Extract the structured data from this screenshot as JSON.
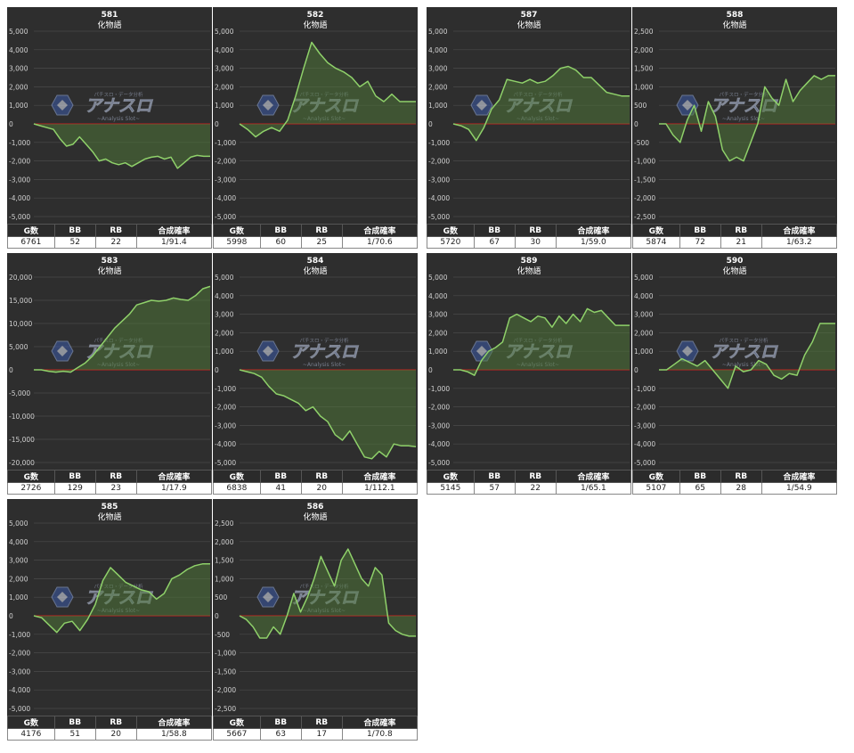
{
  "page": {
    "background": "#ffffff"
  },
  "colors": {
    "panel_bg": "#2e2e2e",
    "grid": "#4a4a4a",
    "zero_line": "#c8201e",
    "line": "#8fd16a",
    "fill": "#4f7a38",
    "axis_text": "#d0d0d0",
    "title_text": "#ffffff"
  },
  "watermark": {
    "main": "アナスロ",
    "sub": "~Analysis Slot~",
    "top": "パチスロ・データ分析"
  },
  "headers": [
    "G数",
    "BB",
    "RB",
    "合成確率"
  ],
  "charts": [
    {
      "title": "581",
      "subtitle": "化物語",
      "type": "area",
      "ylim": [
        -5000,
        5000
      ],
      "yticks": [
        5000,
        4000,
        3000,
        2000,
        1000,
        0,
        -1000,
        -2000,
        -3000,
        -4000,
        -5000
      ],
      "values": [
        0,
        -100,
        -200,
        -300,
        -800,
        -1200,
        -1100,
        -700,
        -1100,
        -1500,
        -2000,
        -1900,
        -2100,
        -2200,
        -2100,
        -2300,
        -2100,
        -1900,
        -1800,
        -1750,
        -1900,
        -1800,
        -2400,
        -2100,
        -1800,
        -1700,
        -1750,
        -1750
      ],
      "stats": {
        "g": "6761",
        "bb": "52",
        "rb": "22",
        "rate": "1/91.4"
      }
    },
    {
      "title": "582",
      "subtitle": "化物語",
      "type": "area",
      "ylim": [
        -5000,
        5000
      ],
      "yticks": [
        5000,
        4000,
        3000,
        2000,
        1000,
        0,
        -1000,
        -2000,
        -3000,
        -4000,
        -5000
      ],
      "values": [
        0,
        -300,
        -700,
        -400,
        -200,
        -400,
        200,
        1500,
        3000,
        4400,
        3800,
        3300,
        3000,
        2800,
        2500,
        2000,
        2300,
        1500,
        1200,
        1600,
        1200,
        1200,
        1200
      ],
      "stats": {
        "g": "5998",
        "bb": "60",
        "rb": "25",
        "rate": "1/70.6"
      }
    },
    {
      "title": "587",
      "subtitle": "化物語",
      "type": "area",
      "ylim": [
        -5000,
        5000
      ],
      "yticks": [
        5000,
        4000,
        3000,
        2000,
        1000,
        0,
        -1000,
        -2000,
        -3000,
        -4000,
        -5000
      ],
      "values": [
        0,
        -100,
        -300,
        -900,
        -200,
        800,
        1300,
        2400,
        2300,
        2200,
        2400,
        2200,
        2300,
        2600,
        3000,
        3100,
        2900,
        2500,
        2500,
        2100,
        1700,
        1600,
        1500,
        1500
      ],
      "stats": {
        "g": "5720",
        "bb": "67",
        "rb": "30",
        "rate": "1/59.0"
      }
    },
    {
      "title": "588",
      "subtitle": "化物語",
      "type": "area",
      "ylim": [
        -2500,
        2500
      ],
      "yticks": [
        2500,
        2000,
        1500,
        1000,
        500,
        0,
        -500,
        -1000,
        -1500,
        -2000,
        -2500
      ],
      "values": [
        0,
        0,
        -300,
        -500,
        100,
        500,
        -200,
        600,
        200,
        -700,
        -1000,
        -900,
        -1000,
        -500,
        0,
        1000,
        700,
        500,
        1200,
        600,
        900,
        1100,
        1300,
        1200,
        1300,
        1300
      ],
      "stats": {
        "g": "5874",
        "bb": "72",
        "rb": "21",
        "rate": "1/63.2"
      }
    },
    {
      "title": "583",
      "subtitle": "化物語",
      "type": "area",
      "ylim": [
        -20000,
        20000
      ],
      "yticks": [
        20000,
        15000,
        10000,
        5000,
        0,
        -5000,
        -10000,
        -15000,
        -20000
      ],
      "values": [
        0,
        0,
        -300,
        -500,
        -300,
        -500,
        500,
        1500,
        3000,
        5000,
        7000,
        9000,
        10500,
        12000,
        14000,
        14500,
        15000,
        14800,
        15000,
        15500,
        15200,
        15000,
        16000,
        17500,
        18000
      ],
      "stats": {
        "g": "2726",
        "bb": "129",
        "rb": "23",
        "rate": "1/17.9"
      }
    },
    {
      "title": "584",
      "subtitle": "化物語",
      "type": "area",
      "ylim": [
        -5000,
        5000
      ],
      "yticks": [
        5000,
        4000,
        3000,
        2000,
        1000,
        0,
        -1000,
        -2000,
        -3000,
        -4000,
        -5000
      ],
      "values": [
        0,
        -100,
        -200,
        -400,
        -900,
        -1300,
        -1400,
        -1600,
        -1800,
        -2200,
        -2000,
        -2500,
        -2800,
        -3500,
        -3800,
        -3300,
        -4000,
        -4700,
        -4800,
        -4400,
        -4700,
        -4000,
        -4100,
        -4100,
        -4150
      ],
      "stats": {
        "g": "6838",
        "bb": "41",
        "rb": "20",
        "rate": "1/112.1"
      }
    },
    {
      "title": "589",
      "subtitle": "化物語",
      "type": "area",
      "ylim": [
        -5000,
        5000
      ],
      "yticks": [
        5000,
        4000,
        3000,
        2000,
        1000,
        0,
        -1000,
        -2000,
        -3000,
        -4000,
        -5000
      ],
      "values": [
        0,
        0,
        -100,
        -300,
        500,
        1000,
        1200,
        1500,
        2800,
        3000,
        2800,
        2600,
        2900,
        2800,
        2300,
        2900,
        2500,
        3000,
        2600,
        3300,
        3100,
        3200,
        2800,
        2400,
        2400,
        2400
      ],
      "stats": {
        "g": "5145",
        "bb": "57",
        "rb": "22",
        "rate": "1/65.1"
      }
    },
    {
      "title": "590",
      "subtitle": "化物語",
      "type": "area",
      "ylim": [
        -5000,
        5000
      ],
      "yticks": [
        5000,
        4000,
        3000,
        2000,
        1000,
        0,
        -1000,
        -2000,
        -3000,
        -4000,
        -5000
      ],
      "values": [
        0,
        0,
        300,
        600,
        400,
        200,
        500,
        0,
        -500,
        -1000,
        200,
        -100,
        0,
        500,
        300,
        -300,
        -500,
        -200,
        -300,
        800,
        1500,
        2500,
        2500,
        2500
      ],
      "stats": {
        "g": "5107",
        "bb": "65",
        "rb": "28",
        "rate": "1/54.9"
      }
    },
    {
      "title": "585",
      "subtitle": "化物語",
      "type": "area",
      "ylim": [
        -5000,
        5000
      ],
      "yticks": [
        5000,
        4000,
        3000,
        2000,
        1000,
        0,
        -1000,
        -2000,
        -3000,
        -4000,
        -5000
      ],
      "values": [
        0,
        -100,
        -500,
        -900,
        -400,
        -300,
        -800,
        -200,
        600,
        1900,
        2600,
        2200,
        1800,
        1600,
        1400,
        1300,
        900,
        1200,
        2000,
        2200,
        2500,
        2700,
        2800,
        2800
      ],
      "stats": {
        "g": "4176",
        "bb": "51",
        "rb": "20",
        "rate": "1/58.8"
      }
    },
    {
      "title": "586",
      "subtitle": "化物語",
      "type": "area",
      "ylim": [
        -2500,
        2500
      ],
      "yticks": [
        2500,
        2000,
        1500,
        1000,
        500,
        0,
        -500,
        -1000,
        -1500,
        -2000,
        -2500
      ],
      "values": [
        0,
        -100,
        -300,
        -600,
        -600,
        -300,
        -500,
        0,
        600,
        100,
        500,
        1000,
        1600,
        1200,
        800,
        1500,
        1800,
        1400,
        1000,
        800,
        1300,
        1100,
        -200,
        -400,
        -500,
        -550,
        -550
      ],
      "stats": {
        "g": "5667",
        "bb": "63",
        "rb": "17",
        "rate": "1/70.8"
      }
    }
  ]
}
